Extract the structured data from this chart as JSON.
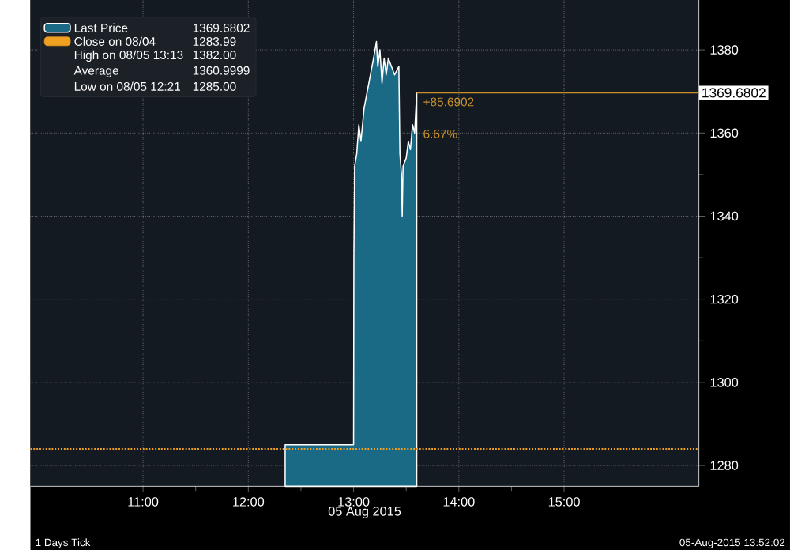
{
  "chart_data": {
    "type": "area",
    "xlabel": "05 Aug 2015",
    "xlim": [
      9.93,
      16.28
    ],
    "ylim": [
      1275,
      1392
    ],
    "xticks": [
      {
        "value": 11,
        "label": "11:00"
      },
      {
        "value": 12,
        "label": "12:00"
      },
      {
        "value": 13,
        "label": "13:00"
      },
      {
        "value": 14,
        "label": "14:00"
      },
      {
        "value": 15,
        "label": "15:00"
      }
    ],
    "yticks": [
      1280,
      1300,
      1320,
      1340,
      1360,
      1380
    ],
    "grid": true,
    "legend": "top left",
    "series": [
      {
        "name": "Last Price",
        "color": "#ffffff",
        "x": [
          12.35,
          12.99,
          13.0,
          13.003,
          13.01,
          13.03,
          13.05,
          13.07,
          13.1,
          13.13,
          13.16,
          13.19,
          13.217,
          13.23,
          13.25,
          13.27,
          13.29,
          13.31,
          13.33,
          13.36,
          13.39,
          13.43,
          13.44,
          13.455,
          13.462,
          13.47,
          13.5,
          13.52,
          13.54,
          13.56,
          13.58,
          13.6
        ],
        "values": [
          1285,
          1285,
          1285,
          1330,
          1352,
          1355,
          1362,
          1358,
          1366,
          1370,
          1374,
          1378,
          1382,
          1376,
          1380,
          1372,
          1378,
          1374,
          1378,
          1376,
          1374,
          1376,
          1355,
          1350,
          1340,
          1352,
          1354,
          1358,
          1356,
          1362,
          1360,
          1369.7
        ]
      }
    ],
    "ref_lines": [
      {
        "axis": "y",
        "value": 1283.99,
        "label": "Close on 08/04",
        "color": "#f0a020",
        "line_style": "dotted"
      },
      {
        "axis": "y",
        "value": 1369.6802,
        "label": "1369.6802",
        "color": "#c8902a",
        "line_style": "solid"
      }
    ],
    "annotations": [
      "1369.6802",
      "1283.99",
      "High on 08/05 13:13",
      "1382.00",
      "Average",
      "1360.9999",
      "Low on 08/05 12:21",
      "1285.00",
      {
        "text": "+85.6902",
        "x": 13.6,
        "y": 1369.6802
      },
      {
        "text": "6.67%",
        "x": 13.6,
        "y": 1362
      },
      "1 Days  Tick",
      "05-Aug-2015 13:52:02"
    ]
  }
}
